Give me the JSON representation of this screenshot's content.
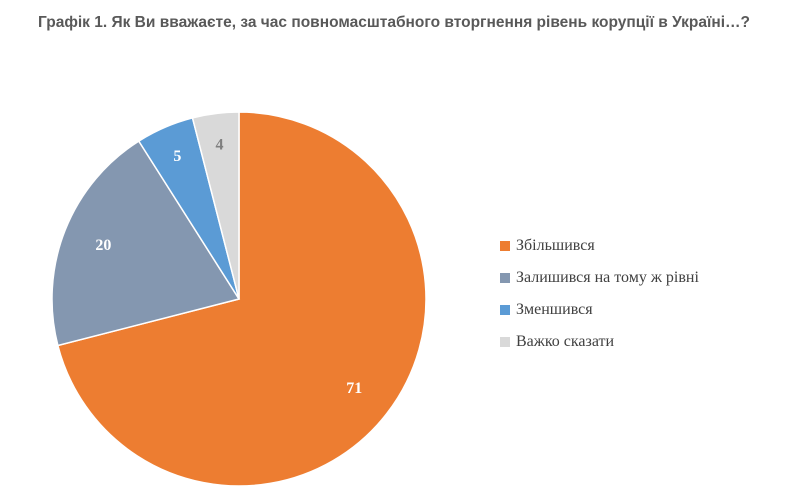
{
  "chart_data": {
    "type": "pie",
    "title": "Графік 1. Як Ви вважаєте, за час повномасштабного вторгнення рівень корупції в Україні…?",
    "categories": [
      "Збільшився",
      "Залишився на тому ж рівні",
      "Зменшився",
      "Важко сказати"
    ],
    "values": [
      71,
      20,
      5,
      4
    ],
    "colors": [
      "#ED7D31",
      "#8497B0",
      "#5B9BD5",
      "#D9D9D9"
    ],
    "label_colors": [
      "#ffffff",
      "#ffffff",
      "#ffffff",
      "#7f7f7f"
    ],
    "start_angle_deg": 0,
    "direction": "clockwise",
    "legend_position": "right"
  }
}
